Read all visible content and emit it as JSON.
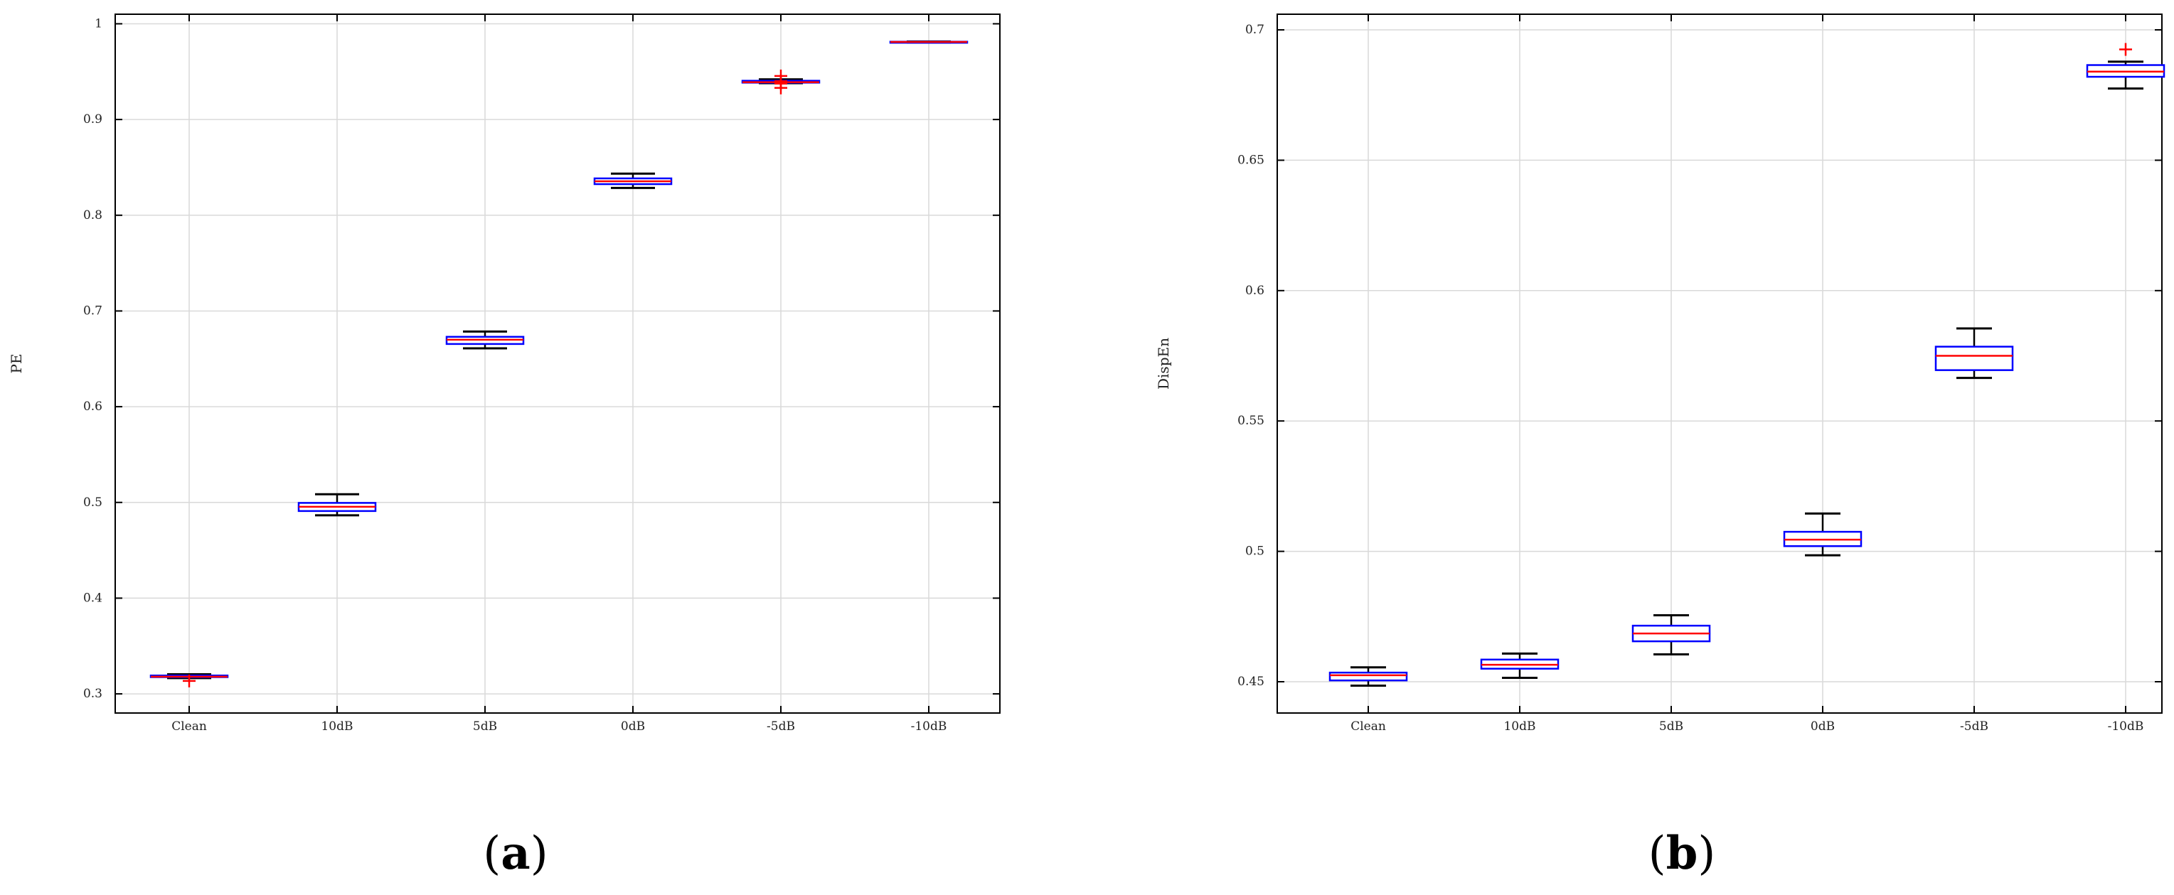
{
  "colors": {
    "box": "#0000ff",
    "median": "#ff0000",
    "whisker": "#000000",
    "outlier": "#ff0000",
    "grid": "#d9d9d9",
    "axis": "#000000"
  },
  "panels": [
    {
      "open": "(",
      "letter": "a",
      "close": ")"
    },
    {
      "open": "(",
      "letter": "b",
      "close": ")"
    }
  ],
  "chart_data": [
    {
      "type": "box",
      "title": "",
      "xlabel": "",
      "ylabel": "PE",
      "categories": [
        "Clean",
        "10dB",
        "5dB",
        "0dB",
        "-5dB",
        "-10dB"
      ],
      "ylim": [
        0.28,
        1.01
      ],
      "yticks": [
        0.3,
        0.4,
        0.5,
        0.6,
        0.7,
        0.8,
        0.9,
        1
      ],
      "ytick_labels": [
        "0.3",
        "0.4",
        "0.5",
        "0.6",
        "0.7",
        "0.8",
        "0.9",
        "1"
      ],
      "grid": true,
      "boxes": [
        {
          "whisker_low": 0.3165,
          "q1": 0.3175,
          "median": 0.318,
          "q3": 0.3192,
          "whisker_high": 0.3205,
          "outliers": [
            0.3135
          ]
        },
        {
          "whisker_low": 0.4865,
          "q1": 0.491,
          "median": 0.4955,
          "q3": 0.4995,
          "whisker_high": 0.5085,
          "outliers": []
        },
        {
          "whisker_low": 0.661,
          "q1": 0.6655,
          "median": 0.67,
          "q3": 0.673,
          "whisker_high": 0.6785,
          "outliers": []
        },
        {
          "whisker_low": 0.8285,
          "q1": 0.8325,
          "median": 0.8355,
          "q3": 0.8385,
          "whisker_high": 0.8435,
          "outliers": []
        },
        {
          "whisker_low": 0.938,
          "q1": 0.9385,
          "median": 0.939,
          "q3": 0.9405,
          "whisker_high": 0.942,
          "outliers": [
            0.933,
            0.9375,
            0.94,
            0.9455
          ]
        },
        {
          "whisker_low": 0.9805,
          "q1": 0.9808,
          "median": 0.981,
          "q3": 0.9813,
          "whisker_high": 0.9815,
          "outliers": []
        }
      ]
    },
    {
      "type": "box",
      "title": "",
      "xlabel": "",
      "ylabel": "DispEn",
      "categories": [
        "Clean",
        "10dB",
        "5dB",
        "0dB",
        "-5dB",
        "-10dB"
      ],
      "ylim": [
        0.438,
        0.706
      ],
      "yticks": [
        0.45,
        0.5,
        0.55,
        0.6,
        0.65,
        0.7
      ],
      "ytick_labels": [
        "0.45",
        "0.5",
        "0.55",
        "0.6",
        "0.65",
        "0.7"
      ],
      "grid": true,
      "boxes": [
        {
          "whisker_low": 0.4485,
          "q1": 0.4505,
          "median": 0.4525,
          "q3": 0.4535,
          "whisker_high": 0.4555,
          "outliers": []
        },
        {
          "whisker_low": 0.4515,
          "q1": 0.455,
          "median": 0.4565,
          "q3": 0.4585,
          "whisker_high": 0.4608,
          "outliers": []
        },
        {
          "whisker_low": 0.4605,
          "q1": 0.4655,
          "median": 0.4685,
          "q3": 0.4715,
          "whisker_high": 0.4755,
          "outliers": []
        },
        {
          "whisker_low": 0.4985,
          "q1": 0.502,
          "median": 0.5045,
          "q3": 0.5075,
          "whisker_high": 0.5145,
          "outliers": []
        },
        {
          "whisker_low": 0.5665,
          "q1": 0.5695,
          "median": 0.575,
          "q3": 0.5785,
          "whisker_high": 0.5855,
          "outliers": []
        },
        {
          "whisker_low": 0.6775,
          "q1": 0.682,
          "median": 0.684,
          "q3": 0.6865,
          "whisker_high": 0.6878,
          "outliers": [
            0.6925
          ]
        }
      ]
    }
  ]
}
